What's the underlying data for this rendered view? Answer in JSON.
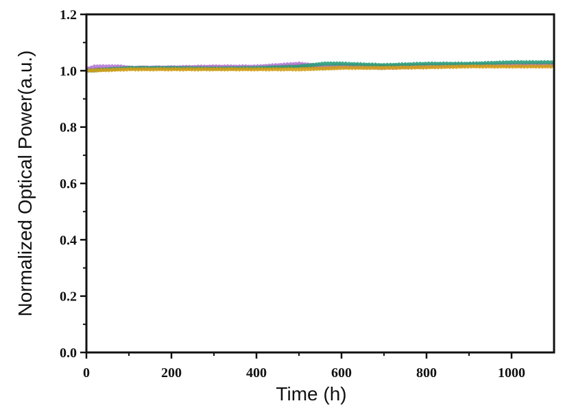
{
  "chart_data": {
    "type": "line",
    "title": "",
    "xlabel": "Time  (h)",
    "ylabel": "Normalized Optical Power(a.u.)",
    "xlim": [
      0,
      1100
    ],
    "ylim": [
      0.0,
      1.2
    ],
    "xticks": [
      0,
      200,
      400,
      600,
      800,
      1000
    ],
    "xtick_labels": [
      "0",
      "200",
      "400",
      "600",
      "800",
      "1000"
    ],
    "yticks": [
      0.0,
      0.2,
      0.4,
      0.6,
      0.8,
      1.0,
      1.2
    ],
    "ytick_labels": [
      "0.0",
      "0.2",
      "0.4",
      "0.6",
      "0.8",
      "1.0",
      "1.2"
    ],
    "grid": false,
    "legend": "none",
    "series": [
      {
        "color": "#7e9bd6",
        "x": [
          0,
          100,
          200,
          300,
          400,
          500,
          560,
          600,
          700,
          800,
          900,
          1000,
          1100
        ],
        "y": [
          1.0,
          1.01,
          1.01,
          1.01,
          1.01,
          1.015,
          1.01,
          1.015,
          1.015,
          1.015,
          1.02,
          1.02,
          1.02
        ]
      },
      {
        "color": "#c0392b",
        "x": [
          0,
          100,
          200,
          300,
          400,
          500,
          560,
          600,
          700,
          800,
          900,
          1000,
          1100
        ],
        "y": [
          1.005,
          1.01,
          1.01,
          1.012,
          1.01,
          1.02,
          1.015,
          1.018,
          1.015,
          1.018,
          1.02,
          1.02,
          1.022
        ]
      },
      {
        "color": "#b47cd6",
        "x": [
          0,
          20,
          80,
          100,
          200,
          300,
          400,
          500,
          560,
          600,
          700,
          800,
          900,
          1000,
          1100
        ],
        "y": [
          1.005,
          1.015,
          1.015,
          1.01,
          1.012,
          1.015,
          1.015,
          1.025,
          1.015,
          1.015,
          1.01,
          1.015,
          1.02,
          1.02,
          1.02
        ]
      },
      {
        "color": "#2a9d7a",
        "x": [
          0,
          100,
          200,
          300,
          400,
          500,
          560,
          600,
          700,
          800,
          900,
          1000,
          1100
        ],
        "y": [
          1.0,
          1.01,
          1.01,
          1.008,
          1.01,
          1.015,
          1.025,
          1.025,
          1.02,
          1.025,
          1.025,
          1.03,
          1.03
        ]
      },
      {
        "color": "#d4a017",
        "x": [
          0,
          100,
          200,
          300,
          400,
          500,
          560,
          600,
          700,
          800,
          900,
          1000,
          1100
        ],
        "y": [
          1.0,
          1.005,
          1.005,
          1.005,
          1.005,
          1.005,
          1.008,
          1.01,
          1.01,
          1.012,
          1.015,
          1.015,
          1.015
        ]
      }
    ]
  }
}
